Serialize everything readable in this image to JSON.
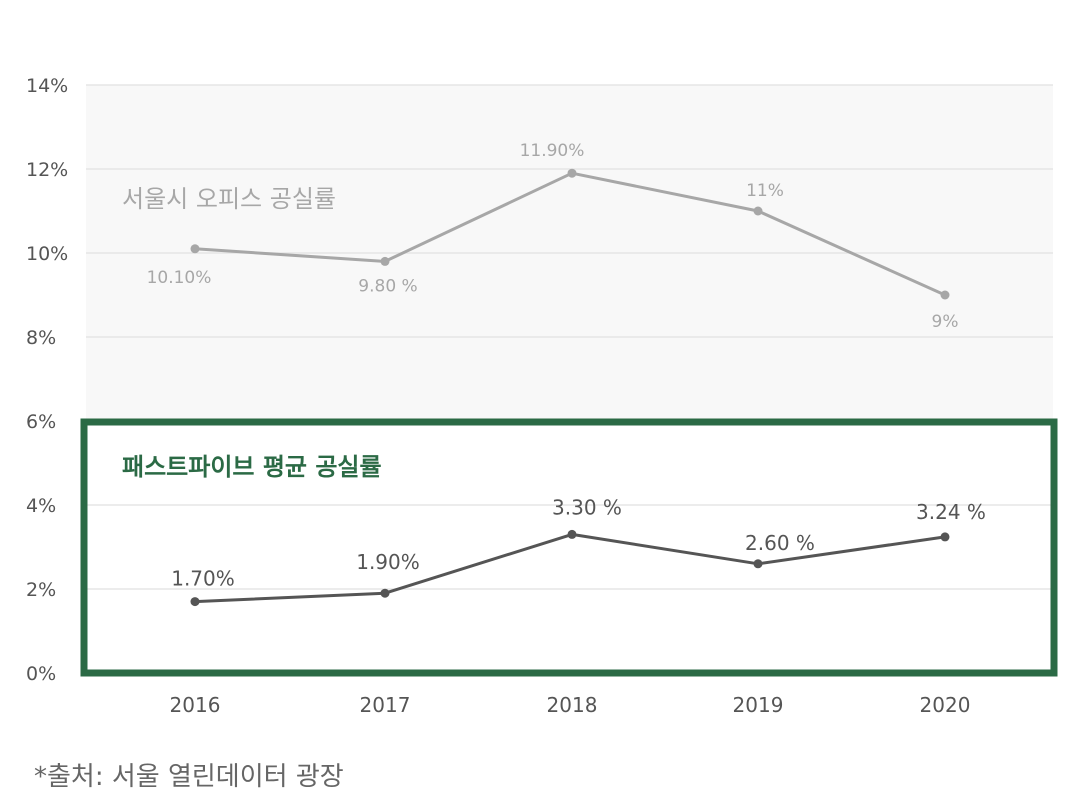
{
  "chart_data": {
    "type": "line",
    "categories": [
      "2016",
      "2017",
      "2018",
      "2019",
      "2020"
    ],
    "y_ticks": [
      "0%",
      "2%",
      "4%",
      "6%",
      "8%",
      "10%",
      "12%",
      "14%"
    ],
    "ylim": [
      0,
      14
    ],
    "grid": true,
    "series": [
      {
        "name": "서울시 오피스 공실률",
        "values": [
          10.1,
          9.8,
          11.9,
          11,
          9
        ],
        "labels": [
          "10.10%",
          "9.80 %",
          "11.90%",
          "11%",
          "9%"
        ],
        "color": "#a7a7a7"
      },
      {
        "name": "패스트파이브 평균 공실률",
        "values": [
          1.7,
          1.9,
          3.3,
          2.6,
          3.24
        ],
        "labels": [
          "1.70%",
          "1.90%",
          "3.30 %",
          "2.60 %",
          "3.24 %"
        ],
        "color": "#555555"
      }
    ],
    "highlight_color": "#2b6a45"
  },
  "source_note": "*출처: 서울 열린데이터 광장"
}
